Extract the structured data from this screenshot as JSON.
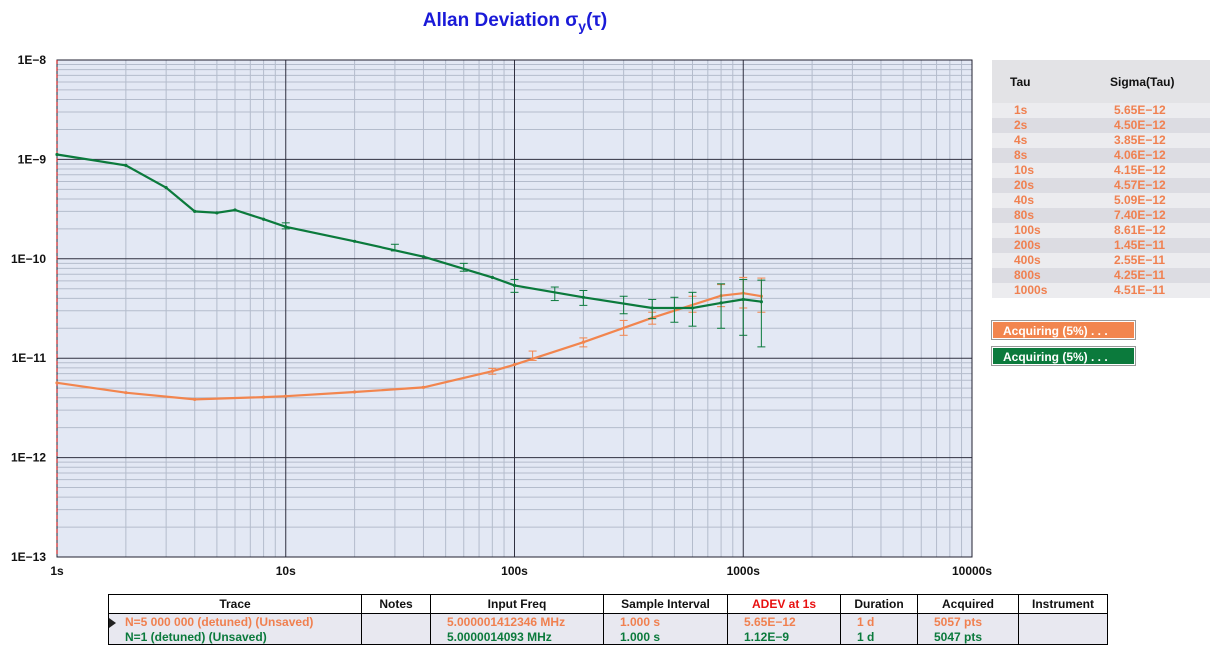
{
  "chart_data": {
    "type": "line",
    "title": "Allan Deviation σ",
    "title_sub": "y",
    "title_suffix": "(τ)",
    "x_scale": "log",
    "y_scale": "log",
    "xlim": [
      1,
      10000
    ],
    "ylim": [
      1e-13,
      1e-08
    ],
    "x_ticks": [
      {
        "v": 1,
        "label": "1s"
      },
      {
        "v": 10,
        "label": "10s"
      },
      {
        "v": 100,
        "label": "100s"
      },
      {
        "v": 1000,
        "label": "1000s"
      },
      {
        "v": 10000,
        "label": "10000s"
      }
    ],
    "y_ticks": [
      {
        "v": 1e-08,
        "label": "1E−8"
      },
      {
        "v": 1e-09,
        "label": "1E−9"
      },
      {
        "v": 1e-10,
        "label": "1E−10"
      },
      {
        "v": 1e-11,
        "label": "1E−11"
      },
      {
        "v": 1e-12,
        "label": "1E−12"
      },
      {
        "v": 1e-13,
        "label": "1E−13"
      }
    ],
    "grid": true,
    "series": [
      {
        "color": "#f2854e",
        "points": [
          [
            1,
            5.65e-12
          ],
          [
            2,
            4.5e-12
          ],
          [
            4,
            3.85e-12
          ],
          [
            8,
            4.06e-12
          ],
          [
            10,
            4.15e-12
          ],
          [
            20,
            4.57e-12
          ],
          [
            40,
            5.09e-12
          ],
          [
            80,
            7.4e-12
          ],
          [
            100,
            8.61e-12
          ],
          [
            200,
            1.45e-11
          ],
          [
            400,
            2.55e-11
          ],
          [
            800,
            4.25e-11
          ],
          [
            1000,
            4.51e-11
          ],
          [
            1200,
            4.2e-11
          ]
        ],
        "error_bars": [
          [
            80,
            6.9e-12,
            7.9e-12
          ],
          [
            120,
            9.5e-12,
            1.18e-11
          ],
          [
            200,
            1.3e-11,
            1.6e-11
          ],
          [
            300,
            1.7e-11,
            2.4e-11
          ],
          [
            400,
            2.2e-11,
            2.9e-11
          ],
          [
            600,
            2.9e-11,
            4.2e-11
          ],
          [
            800,
            3.3e-11,
            5.5e-11
          ],
          [
            1000,
            3.2e-11,
            6.5e-11
          ],
          [
            1200,
            2.9e-11,
            6.4e-11
          ]
        ]
      },
      {
        "color": "#0b7a3c",
        "points": [
          [
            1,
            1.12e-09
          ],
          [
            2,
            8.7e-10
          ],
          [
            3,
            5.2e-10
          ],
          [
            4,
            3e-10
          ],
          [
            5,
            2.9e-10
          ],
          [
            6,
            3.1e-10
          ],
          [
            8,
            2.5e-10
          ],
          [
            10,
            2.1e-10
          ],
          [
            20,
            1.5e-10
          ],
          [
            40,
            1.05e-10
          ],
          [
            80,
            6.5e-11
          ],
          [
            100,
            5.4e-11
          ],
          [
            200,
            4.1e-11
          ],
          [
            400,
            3.2e-11
          ],
          [
            600,
            3.2e-11
          ],
          [
            800,
            3.6e-11
          ],
          [
            1000,
            3.9e-11
          ],
          [
            1200,
            3.7e-11
          ]
        ],
        "error_bars": [
          [
            10,
            2e-10,
            2.3e-10
          ],
          [
            30,
            1.2e-10,
            1.4e-10
          ],
          [
            60,
            7.5e-11,
            9e-11
          ],
          [
            100,
            4.6e-11,
            6.2e-11
          ],
          [
            150,
            3.8e-11,
            5.2e-11
          ],
          [
            200,
            3.4e-11,
            4.8e-11
          ],
          [
            300,
            2.8e-11,
            4.2e-11
          ],
          [
            400,
            2.5e-11,
            3.9e-11
          ],
          [
            500,
            2.3e-11,
            4.1e-11
          ],
          [
            600,
            2.1e-11,
            4.6e-11
          ],
          [
            800,
            2e-11,
            5.6e-11
          ],
          [
            1000,
            1.7e-11,
            6.2e-11
          ],
          [
            1200,
            1.3e-11,
            6.1e-11
          ]
        ]
      }
    ]
  },
  "sigma_table": {
    "header_tau": "Tau",
    "header_sigma": "Sigma(Tau)",
    "rows": [
      {
        "tau": "1s",
        "sigma": "5.65E−12"
      },
      {
        "tau": "2s",
        "sigma": "4.50E−12"
      },
      {
        "tau": "4s",
        "sigma": "3.85E−12"
      },
      {
        "tau": "8s",
        "sigma": "4.06E−12"
      },
      {
        "tau": "10s",
        "sigma": "4.15E−12"
      },
      {
        "tau": "20s",
        "sigma": "4.57E−12"
      },
      {
        "tau": "40s",
        "sigma": "5.09E−12"
      },
      {
        "tau": "80s",
        "sigma": "7.40E−12"
      },
      {
        "tau": "100s",
        "sigma": "8.61E−12"
      },
      {
        "tau": "200s",
        "sigma": "1.45E−11"
      },
      {
        "tau": "400s",
        "sigma": "2.55E−11"
      },
      {
        "tau": "800s",
        "sigma": "4.25E−11"
      },
      {
        "tau": "1000s",
        "sigma": "4.51E−11"
      }
    ]
  },
  "status": {
    "orange": "Acquiring (5%) . . .",
    "green": "Acquiring (5%) . . ."
  },
  "info_table": {
    "headers": [
      "Trace",
      "Notes",
      "Input Freq",
      "Sample Interval",
      "ADEV at 1s",
      "Duration",
      "Acquired",
      "Instrument"
    ],
    "adev_header_color": "#e81010",
    "rows": [
      {
        "trace": "N=5 000 000 (detuned) (Unsaved)",
        "notes": "",
        "freq": "5.000001412346 MHz",
        "interval": "1.000 s",
        "adev": "5.65E−12",
        "duration": "1 d",
        "acquired": "5057 pts",
        "instrument": ""
      },
      {
        "trace": "N=1 (detuned) (Unsaved)",
        "notes": "",
        "freq": "5.0000014093 MHz",
        "interval": "1.000 s",
        "adev": "1.12E−9",
        "duration": "1 d",
        "acquired": "5047 pts",
        "instrument": ""
      }
    ]
  }
}
